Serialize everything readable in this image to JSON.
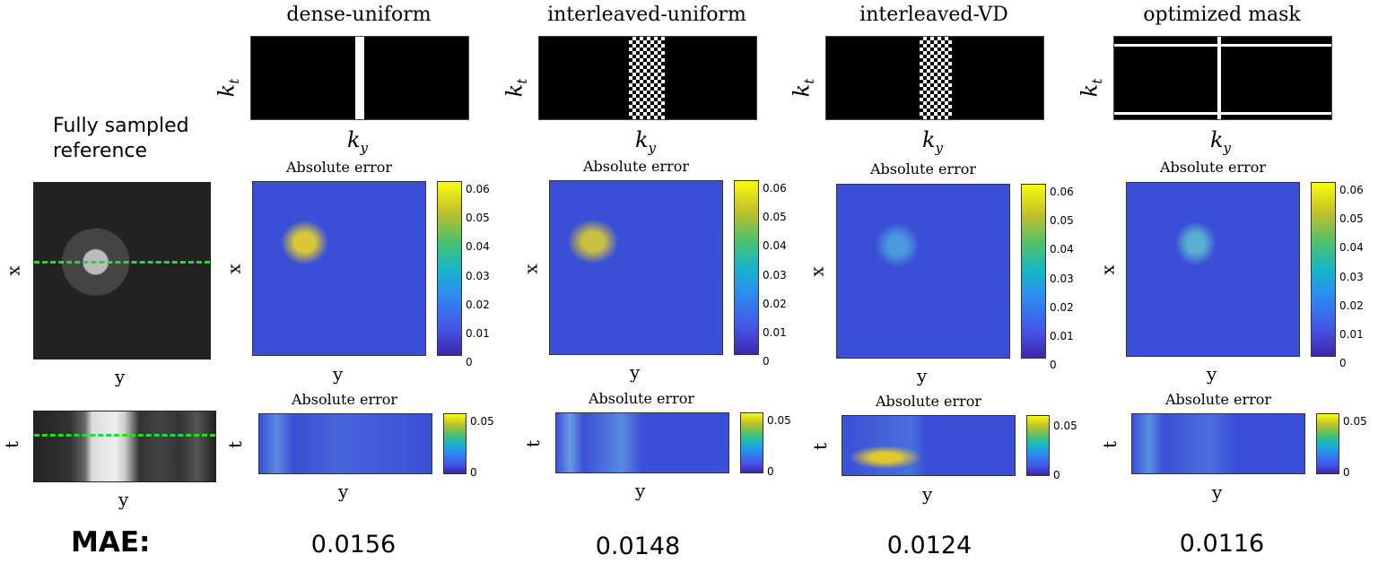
{
  "reference": {
    "label_line1": "Fully sampled",
    "label_line2": "reference",
    "x_axis_label": "x",
    "y_axis_label": "y",
    "t_axis_label": "t",
    "y_axis_label_bottom": "y"
  },
  "mae_heading": "MAE:",
  "mask_axis": {
    "ky": "k",
    "ky_sub": "y",
    "kt": "k",
    "kt_sub": "t"
  },
  "error_title": "Absolute error",
  "axis_labels": {
    "x": "x",
    "y": "y",
    "t": "t"
  },
  "colorbar_spatial": {
    "ticks": [
      "0.06",
      "0.05",
      "0.04",
      "0.03",
      "0.02",
      "0.01",
      "0"
    ]
  },
  "colorbar_temporal": {
    "ticks": [
      "0.05",
      "0"
    ]
  },
  "columns": [
    {
      "title": "dense-uniform",
      "mae": "0.0156"
    },
    {
      "title": "interleaved-uniform",
      "mae": "0.0148"
    },
    {
      "title": "interleaved-VD",
      "mae": "0.0124"
    },
    {
      "title": "optimized mask",
      "mae": "0.0116"
    }
  ],
  "colors": {
    "guide_line": "#22dd22"
  }
}
